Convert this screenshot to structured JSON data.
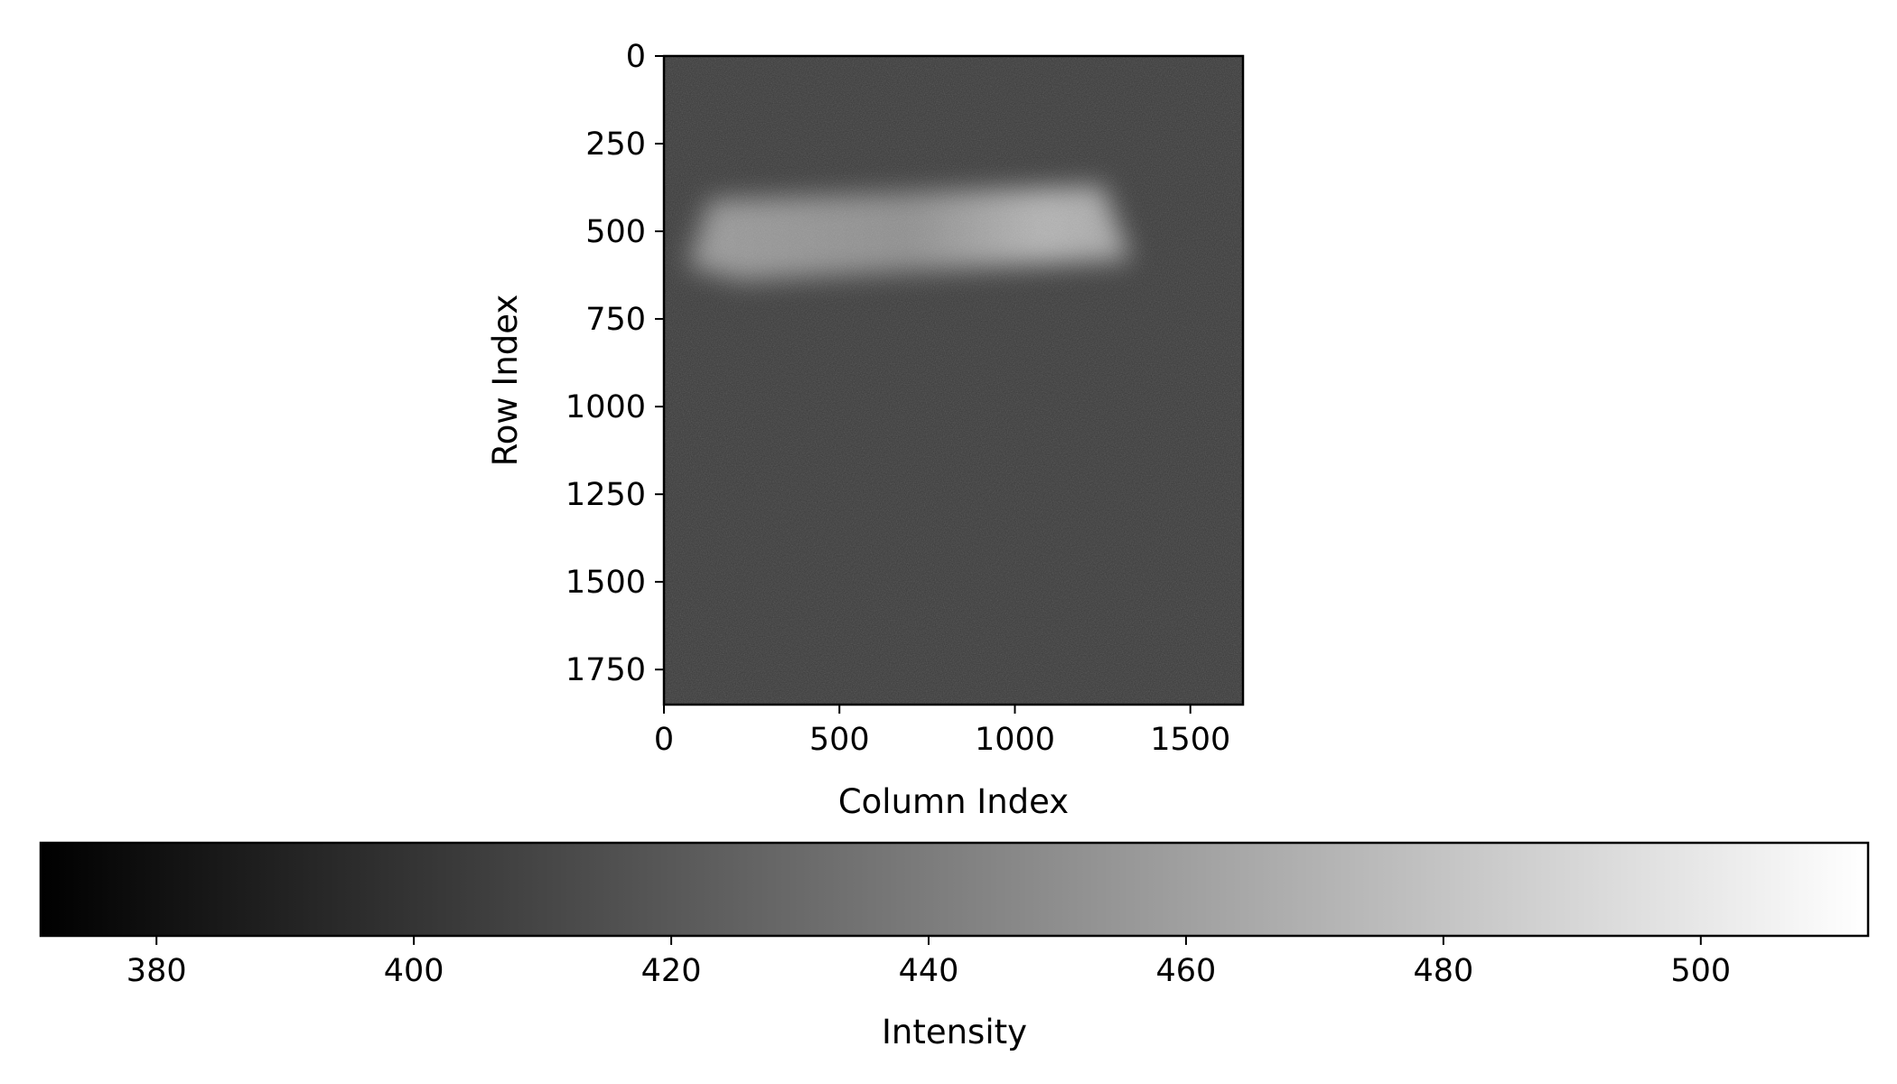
{
  "chart_data": {
    "type": "heatmap",
    "title": "",
    "xlabel": "Column Index",
    "ylabel": "Row Index",
    "xlim": [
      0,
      1650
    ],
    "ylim": [
      1850,
      0
    ],
    "xticks": [
      0,
      500,
      1000,
      1500
    ],
    "yticks": [
      0,
      250,
      500,
      750,
      1000,
      1250,
      1500,
      1750
    ],
    "colormap": "gray",
    "grid": false,
    "image_description_values": {
      "background_intensity": 406,
      "bright_band": {
        "columns": [
          70,
          1330
        ],
        "rows": [
          370,
          640
        ],
        "intensity_left": 440,
        "intensity_right": 460
      }
    },
    "colorbar": {
      "label": "Intensity",
      "orientation": "horizontal",
      "placement": "bottom",
      "range": [
        371,
        513
      ],
      "ticks": [
        380,
        400,
        420,
        440,
        460,
        480,
        500
      ]
    }
  }
}
